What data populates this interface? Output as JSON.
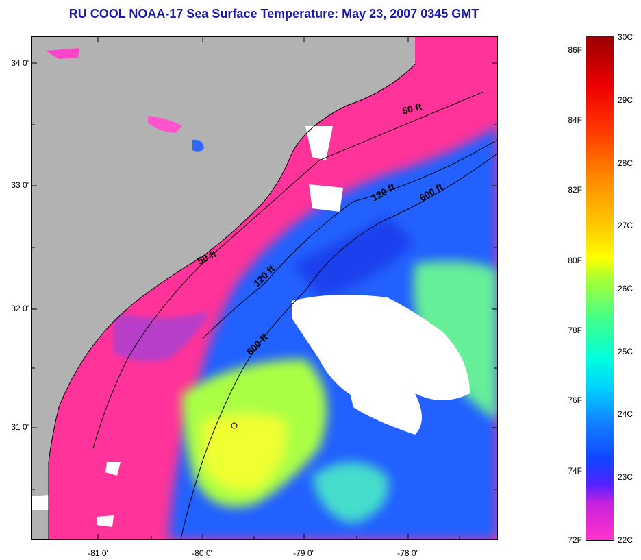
{
  "title": "RU COOL  NOAA-17  Sea Surface Temperature:  May 23, 2007 0345 GMT",
  "map": {
    "latitude_labels": [
      "34 0'",
      "33 0'",
      "32 0'",
      "31 0'"
    ],
    "longitude_labels": [
      "-81 0'",
      "-80 0'",
      "-79 0'",
      "-78 0'"
    ],
    "contours": [
      {
        "label": "50 ft"
      },
      {
        "label": "50 ft"
      },
      {
        "label": "120 ft"
      },
      {
        "label": "120 ft"
      },
      {
        "label": "600 ft"
      },
      {
        "label": "600 ft"
      }
    ],
    "colors": {
      "land": "#b2b2b2",
      "cloud": "#ffffff",
      "warm_water": "#ffff33",
      "cool_water": "#1e5cff",
      "coldest_water": "#ff3399"
    }
  },
  "colorbar": {
    "fahrenheit_labels": [
      "86F",
      "84F",
      "82F",
      "80F",
      "78F",
      "76F",
      "74F",
      "72F"
    ],
    "celsius_labels": [
      "30C",
      "29C",
      "28C",
      "27C",
      "26C",
      "25C",
      "24C",
      "23C",
      "22C"
    ],
    "range_celsius": [
      22,
      30
    ],
    "range_fahrenheit": [
      72,
      86
    ]
  }
}
